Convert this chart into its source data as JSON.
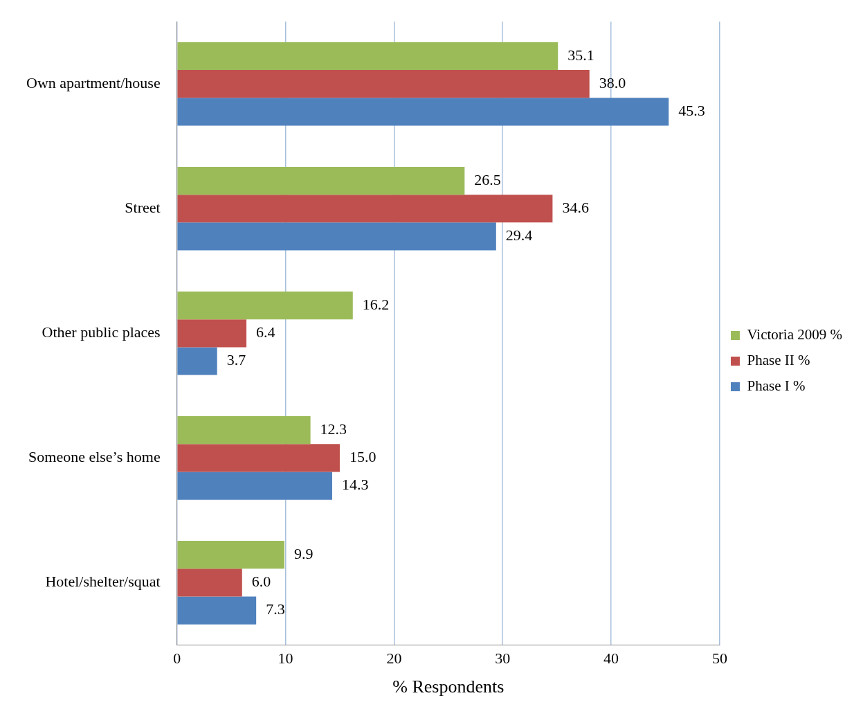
{
  "chart_data": {
    "type": "bar",
    "orientation": "horizontal",
    "xlabel": "% Respondents",
    "categories": [
      "Own apartment/house",
      "Street",
      "Other public places",
      "Someone else’s home",
      "Hotel/shelter/squat"
    ],
    "series": [
      {
        "name": "Victoria 2009 %",
        "color": "#9bbb59",
        "values": [
          35.1,
          26.5,
          16.2,
          12.3,
          9.9
        ],
        "value_labels": [
          "35.1",
          "26.5",
          "16.2",
          "12.3",
          "9.9"
        ]
      },
      {
        "name": "Phase II %",
        "color": "#c0504d",
        "values": [
          38.0,
          34.6,
          6.4,
          15.0,
          6.0
        ],
        "value_labels": [
          "38.0",
          "34.6",
          "6.4",
          "15.0",
          "6.0"
        ]
      },
      {
        "name": "Phase I %",
        "color": "#4f81bd",
        "values": [
          45.3,
          29.4,
          3.7,
          14.3,
          7.3
        ],
        "value_labels": [
          "45.3",
          "29.4",
          "3.7",
          "14.3",
          "7.3"
        ]
      }
    ],
    "xlim": [
      0,
      50
    ],
    "xticks": [
      0,
      10,
      20,
      30,
      40,
      50
    ],
    "grid": "x",
    "legend": "right"
  }
}
